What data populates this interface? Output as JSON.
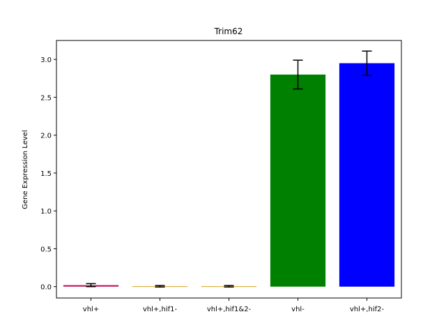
{
  "chart_data": {
    "type": "bar",
    "title": "Trim62",
    "xlabel": "",
    "ylabel": "Gene Expression Level",
    "categories": [
      "vhl+",
      "vhl+,hif1-",
      "vhl+,hif1&2-",
      "vhl-",
      "vhl+,hif2-"
    ],
    "values": [
      0.02,
      0.005,
      0.005,
      2.8,
      2.95
    ],
    "errors": [
      0.02,
      0.01,
      0.01,
      0.19,
      0.16
    ],
    "colors": [
      "#c2185b",
      "#daa520",
      "#daa520",
      "#008000",
      "#0000ff"
    ],
    "ylim": [
      -0.15,
      3.25
    ],
    "yticks": [
      "0.0",
      "0.5",
      "1.0",
      "1.5",
      "2.0",
      "2.5",
      "3.0"
    ],
    "grid": false,
    "legend": "none"
  }
}
